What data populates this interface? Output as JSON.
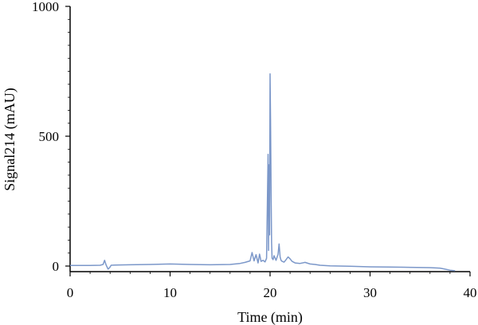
{
  "chart_data": {
    "type": "line",
    "title": "",
    "xlabel": "Time (min)",
    "ylabel": "Signal214 (mAU)",
    "xlim": [
      0,
      40
    ],
    "ylim": [
      -20,
      1000
    ],
    "x_ticks": [
      0,
      10,
      20,
      30,
      40
    ],
    "y_ticks": [
      0,
      500,
      1000
    ],
    "x_tick_labels": [
      "0",
      "10",
      "20",
      "30",
      "40"
    ],
    "y_tick_labels": [
      "0",
      "500",
      "1000"
    ],
    "grid": false,
    "legend": "none",
    "line_color": "#7b97c9",
    "series": [
      {
        "x": [
          0,
          1,
          2,
          3,
          3.3,
          3.45,
          3.6,
          3.8,
          3.95,
          4.1,
          4.5,
          6,
          8,
          10,
          12,
          14,
          16,
          17,
          17.5,
          18,
          18.2,
          18.4,
          18.6,
          18.8,
          18.95,
          19.1,
          19.3,
          19.5,
          19.65,
          19.8,
          19.85,
          19.9,
          19.95,
          20.0,
          20.05,
          20.1,
          20.15,
          20.2,
          20.3,
          20.4,
          20.6,
          20.8,
          20.9,
          21.0,
          21.1,
          21.2,
          21.4,
          21.6,
          21.8,
          22.0,
          22.2,
          22.5,
          23,
          23.5,
          24,
          24.5,
          25,
          26,
          28,
          30,
          32,
          34,
          36,
          37,
          37.5,
          38,
          38.5
        ],
        "y": [
          2,
          2,
          2,
          3,
          6,
          22,
          4,
          -12,
          -6,
          3,
          4,
          5,
          6,
          8,
          6,
          5,
          6,
          10,
          14,
          20,
          52,
          20,
          44,
          12,
          46,
          18,
          22,
          16,
          30,
          430,
          60,
          390,
          120,
          740,
          560,
          280,
          90,
          30,
          25,
          40,
          22,
          45,
          85,
          35,
          22,
          18,
          15,
          25,
          35,
          28,
          18,
          12,
          10,
          14,
          8,
          6,
          3,
          1,
          -1,
          -3,
          -4,
          -5,
          -6,
          -8,
          -12,
          -16,
          -18
        ]
      }
    ]
  }
}
